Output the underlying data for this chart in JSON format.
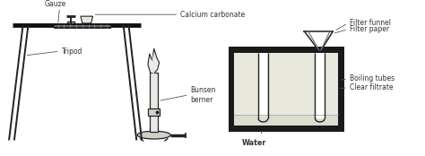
{
  "line_color": "#555555",
  "dark_color": "#222222",
  "thick_color": "#111111",
  "text_color": "#333333",
  "labels": {
    "calcium_carbonate": "Calcium carbonate",
    "gauze": "Gauze",
    "tripod": "Tripod",
    "bunsen": "Bunsen\nberner",
    "water": "Water",
    "filter_paper": "Filter paper",
    "filter_funnel": "Filter funnel",
    "boiling_tubes": "Boiling tubes",
    "clear_filtrate": "Clear filtrate"
  },
  "figsize": [
    4.74,
    1.74
  ],
  "dpi": 100
}
